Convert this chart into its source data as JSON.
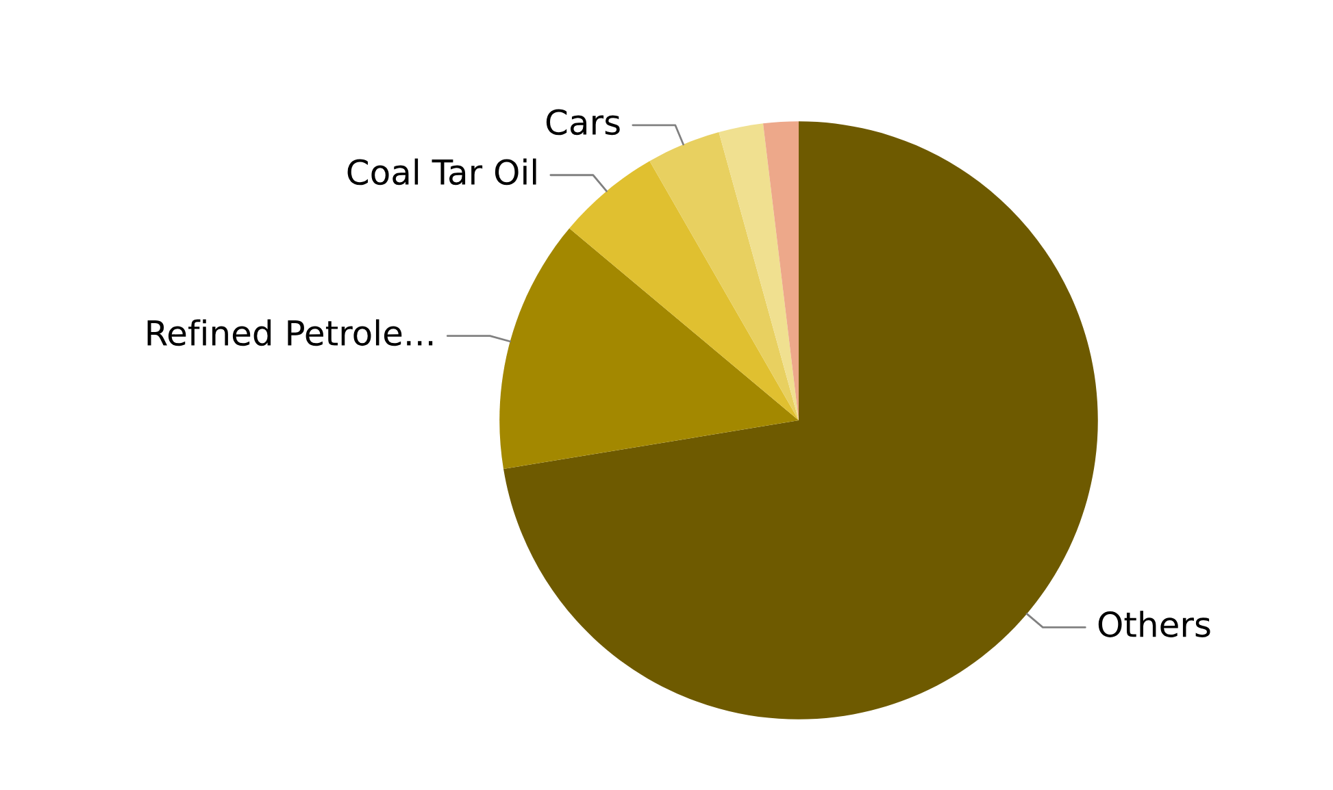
{
  "chart_data": {
    "type": "pie",
    "categories": [
      "Others",
      "Refined Petrole...",
      "Coal Tar Oil",
      "Cars",
      null,
      null
    ],
    "values": [
      72.4,
      13.7,
      5.6,
      4.0,
      2.4,
      1.9
    ],
    "colors": [
      "#6e5a00",
      "#a38800",
      "#e0c030",
      "#e8d060",
      "#f0e090",
      "#eda88a"
    ]
  }
}
